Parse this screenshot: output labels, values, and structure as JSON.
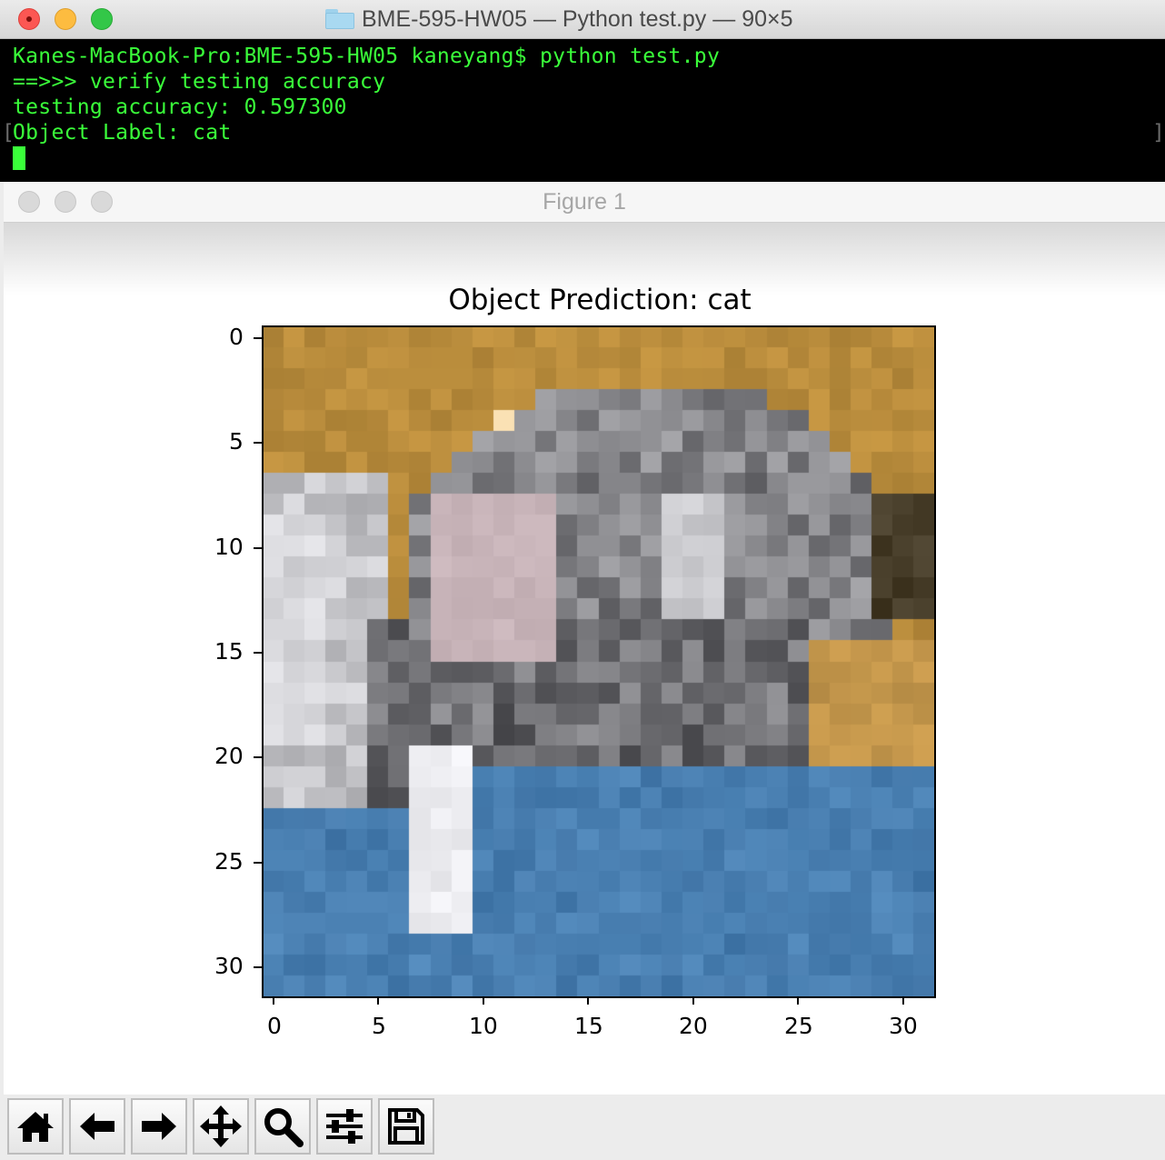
{
  "terminal": {
    "title": "BME-595-HW05 — Python test.py — 90×5",
    "lines": [
      "Kanes-MacBook-Pro:BME-595-HW05 kaneyang$ python test.py",
      "==>>> verify testing accuracy",
      "testing accuracy: 0.597300",
      "Object Label: cat"
    ],
    "bracket_left": "[",
    "bracket_right": "]",
    "colors": {
      "background": "#000000",
      "text": "#3aff3a"
    }
  },
  "figure": {
    "title": "Figure 1",
    "plot_title": "Object Prediction: cat",
    "x_tick_labels": [
      "0",
      "5",
      "10",
      "15",
      "20",
      "25",
      "30"
    ],
    "y_tick_labels": [
      "0",
      "5",
      "10",
      "15",
      "20",
      "25",
      "30"
    ],
    "image_desc": "32x32 pixelated CIFAR-10 image of a cat"
  },
  "toolbar": {
    "buttons": [
      "home",
      "back",
      "forward",
      "pan",
      "zoom",
      "configure-subplots",
      "save"
    ]
  }
}
